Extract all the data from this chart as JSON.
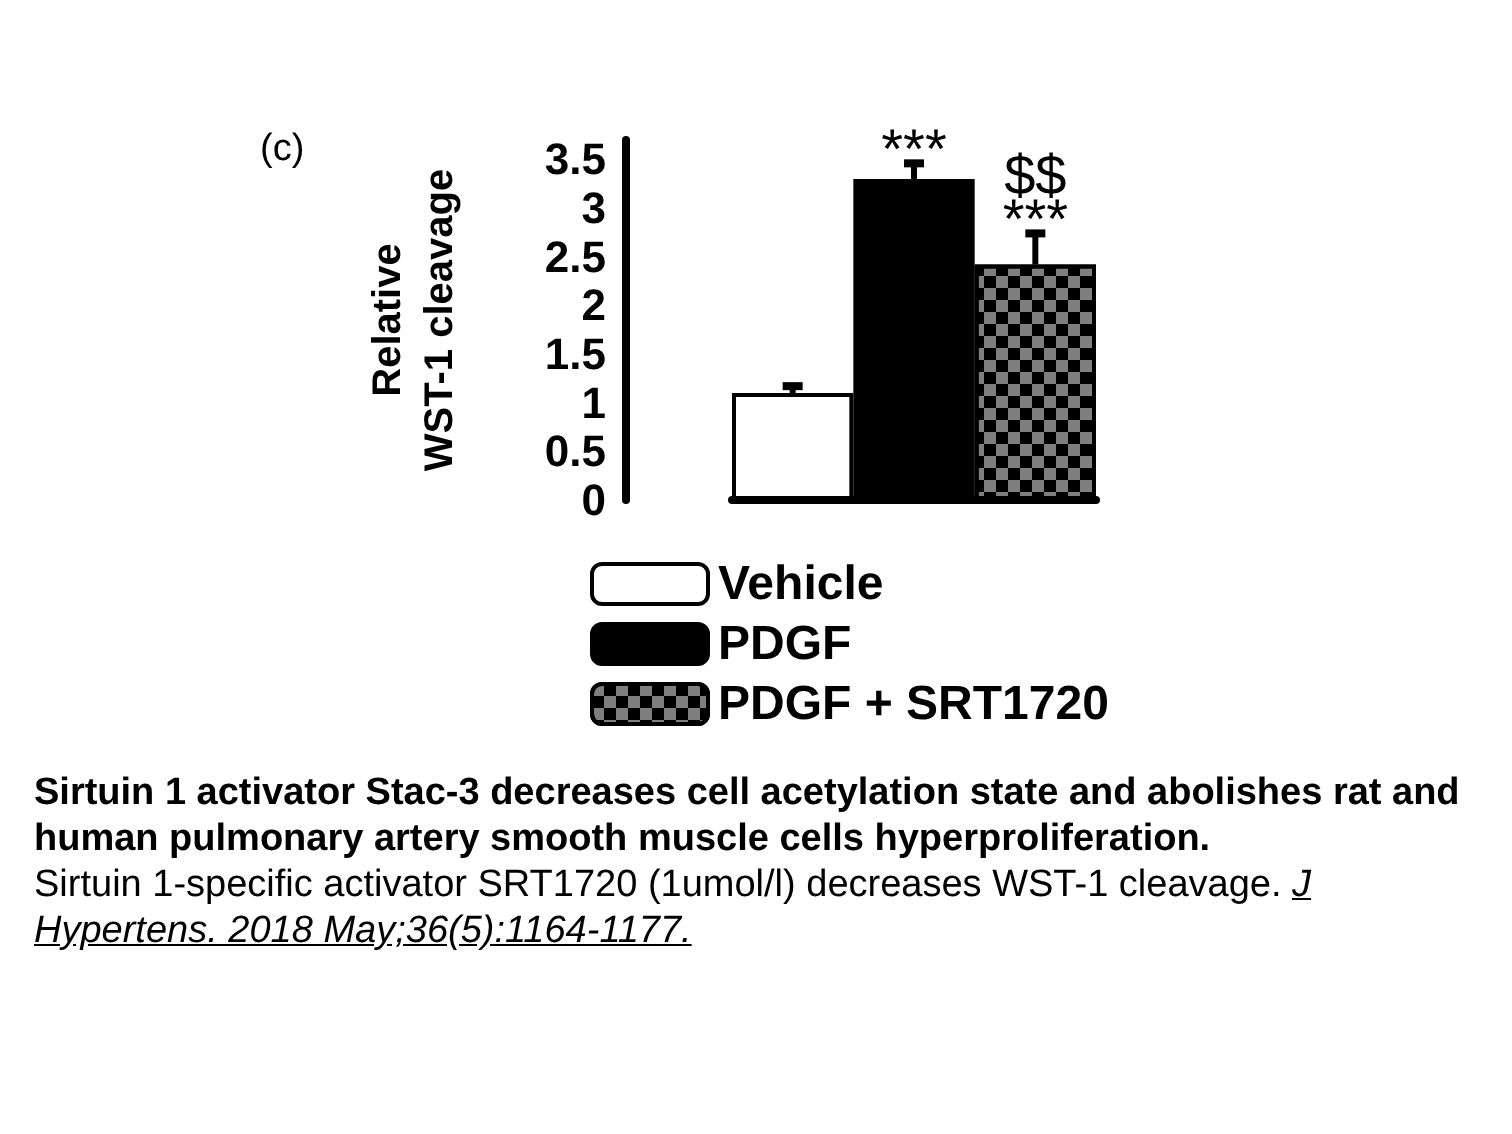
{
  "chart_data": {
    "type": "bar",
    "title": "Sirtuin 1 activator Stac-3 decreases cell acetylation state and abolishes rat and human pulmonary artery smooth muscle cells hyperproliferation.",
    "subtitle": "Sirtuin 1-specific activator SRT1720 (1umol/l) decreases WST-1 cleavage.",
    "ylabel": "Relative\nWST-1 cleavage",
    "categories": [
      null,
      null,
      null
    ],
    "series": [
      {
        "name": "Vehicle",
        "color": "#ffffff",
        "values": [
          1.1,
          null,
          null
        ],
        "errors": [
          [
            1.1,
            1.17
          ],
          null,
          null
        ]
      },
      {
        "name": "PDGF",
        "color": "#000000",
        "values": [
          null,
          3.3,
          null
        ],
        "errors": [
          null,
          [
            3.3,
            3.46
          ],
          null
        ],
        "value_labels": [
          null,
          "***",
          null
        ]
      },
      {
        "name": "PDGF + SRT1720",
        "color": "#7f7f7f",
        "values": [
          null,
          null,
          2.42
        ],
        "errors": [
          null,
          null,
          [
            2.42,
            2.74
          ]
        ],
        "value_labels": [
          null,
          null,
          "$$\n***"
        ]
      }
    ],
    "ylim": [
      0,
      3.7
    ],
    "yticks": [
      0,
      0.5,
      1,
      1.5,
      2,
      2.5,
      3,
      3.5
    ],
    "grid": false,
    "legend": "bottom",
    "annotations": [
      "(c)",
      "J Hypertens. 2018 May;36(5):1164-1177."
    ]
  }
}
